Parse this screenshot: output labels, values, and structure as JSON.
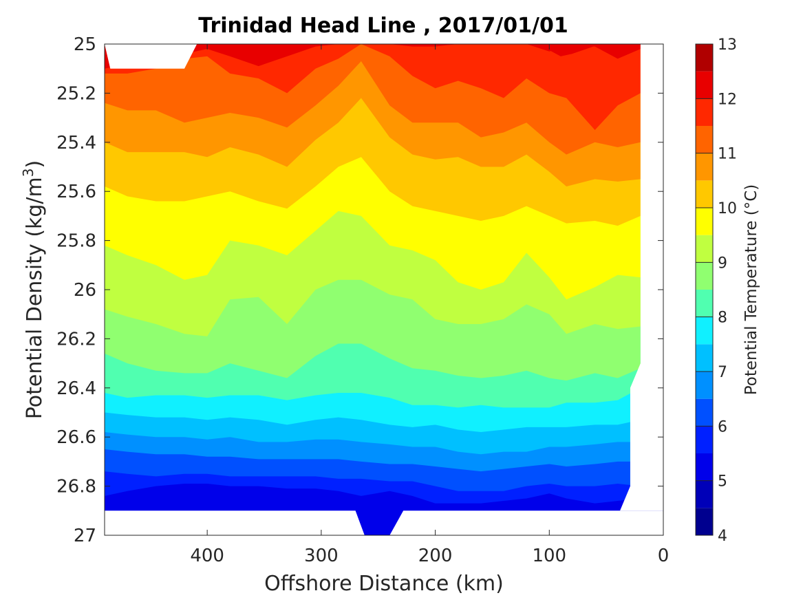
{
  "chart_data": {
    "type": "contour",
    "title": "Trinidad Head Line , 2017/01/01",
    "xlabel": "Offshore Distance (km)",
    "ylabel_main": "Potential Density (kg/m",
    "ylabel_sup": "3",
    "ylabel_end": ")",
    "xlim": [
      490,
      0
    ],
    "ylim": [
      25,
      27
    ],
    "x_ticks": [
      {
        "value": 400,
        "label": "400"
      },
      {
        "value": 300,
        "label": "300"
      },
      {
        "value": 200,
        "label": "200"
      },
      {
        "value": 100,
        "label": "100"
      },
      {
        "value": 0,
        "label": "0"
      }
    ],
    "y_ticks": [
      {
        "value": 25,
        "label": "25"
      },
      {
        "value": 25.2,
        "label": "25.2"
      },
      {
        "value": 25.4,
        "label": "25.4"
      },
      {
        "value": 25.6,
        "label": "25.6"
      },
      {
        "value": 25.8,
        "label": "25.8"
      },
      {
        "value": 26,
        "label": "26"
      },
      {
        "value": 26.2,
        "label": "26.2"
      },
      {
        "value": 26.4,
        "label": "26.4"
      },
      {
        "value": 26.6,
        "label": "26.6"
      },
      {
        "value": 26.8,
        "label": "26.8"
      },
      {
        "value": 27,
        "label": "27"
      }
    ],
    "colorbar": {
      "label": "Potential Temperature (°C)",
      "min": 4,
      "max": 13,
      "ticks": [
        {
          "value": 4,
          "label": "4"
        },
        {
          "value": 5,
          "label": "5"
        },
        {
          "value": 6,
          "label": "6"
        },
        {
          "value": 7,
          "label": "7"
        },
        {
          "value": 8,
          "label": "8"
        },
        {
          "value": 9,
          "label": "9"
        },
        {
          "value": 10,
          "label": "10"
        },
        {
          "value": 11,
          "label": "11"
        },
        {
          "value": 12,
          "label": "12"
        },
        {
          "value": 13,
          "label": "13"
        }
      ],
      "levels": [
        {
          "from": 4.0,
          "to": 4.5,
          "color": "#00008f"
        },
        {
          "from": 4.5,
          "to": 5.0,
          "color": "#0000b8"
        },
        {
          "from": 5.0,
          "to": 5.5,
          "color": "#0000ea"
        },
        {
          "from": 5.5,
          "to": 6.0,
          "color": "#0020ff"
        },
        {
          "from": 6.0,
          "to": 6.5,
          "color": "#0050ff"
        },
        {
          "from": 6.5,
          "to": 7.0,
          "color": "#0090ff"
        },
        {
          "from": 7.0,
          "to": 7.5,
          "color": "#00c0ff"
        },
        {
          "from": 7.5,
          "to": 8.0,
          "color": "#10f0ff"
        },
        {
          "from": 8.0,
          "to": 8.5,
          "color": "#50ffb0"
        },
        {
          "from": 8.5,
          "to": 9.0,
          "color": "#90ff70"
        },
        {
          "from": 9.0,
          "to": 9.5,
          "color": "#c0ff40"
        },
        {
          "from": 9.5,
          "to": 10.0,
          "color": "#ffff00"
        },
        {
          "from": 10.0,
          "to": 10.5,
          "color": "#ffc800"
        },
        {
          "from": 10.5,
          "to": 11.0,
          "color": "#ff9600"
        },
        {
          "from": 11.0,
          "to": 11.5,
          "color": "#ff6400"
        },
        {
          "from": 11.5,
          "to": 12.0,
          "color": "#ff2800"
        },
        {
          "from": 12.0,
          "to": 12.5,
          "color": "#e80000"
        },
        {
          "from": 12.5,
          "to": 13.0,
          "color": "#b00000"
        }
      ]
    },
    "contours": {
      "x_km": [
        490,
        470,
        445,
        420,
        400,
        380,
        355,
        330,
        305,
        285,
        265,
        240,
        220,
        200,
        180,
        160,
        140,
        120,
        100,
        85,
        60,
        40,
        20
      ],
      "isotherms": [
        {
          "temp": 12.0,
          "sigma": [
            25.1,
            25.08,
            25.06,
            25.04,
            25.02,
            25.05,
            25.09,
            25.05,
            25.01,
            25.0,
            25.0,
            25.0,
            25.01,
            25.01,
            25.0,
            25.0,
            25.0,
            25.0,
            25.03,
            25.01,
            25.01,
            25.06,
            25.02
          ]
        },
        {
          "temp": 11.5,
          "sigma": [
            25.12,
            25.12,
            25.1,
            25.06,
            25.05,
            25.12,
            25.14,
            25.2,
            25.1,
            25.06,
            25.0,
            25.05,
            25.13,
            25.18,
            25.15,
            25.18,
            25.22,
            25.14,
            25.2,
            25.22,
            25.35,
            25.25,
            25.2
          ]
        },
        {
          "temp": 11.0,
          "sigma": [
            25.24,
            25.27,
            25.27,
            25.32,
            25.3,
            25.28,
            25.3,
            25.34,
            25.25,
            25.17,
            25.07,
            25.25,
            25.32,
            25.32,
            25.32,
            25.38,
            25.36,
            25.32,
            25.4,
            25.45,
            25.4,
            25.42,
            25.4
          ]
        },
        {
          "temp": 10.5,
          "sigma": [
            25.4,
            25.44,
            25.44,
            25.44,
            25.46,
            25.42,
            25.45,
            25.5,
            25.39,
            25.32,
            25.22,
            25.38,
            25.45,
            25.47,
            25.46,
            25.5,
            25.5,
            25.45,
            25.52,
            25.58,
            25.55,
            25.56,
            25.55
          ]
        },
        {
          "temp": 10.0,
          "sigma": [
            25.58,
            25.62,
            25.64,
            25.64,
            25.62,
            25.6,
            25.64,
            25.67,
            25.58,
            25.5,
            25.46,
            25.6,
            25.66,
            25.68,
            25.7,
            25.72,
            25.7,
            25.66,
            25.7,
            25.73,
            25.72,
            25.74,
            25.7
          ]
        },
        {
          "temp": 9.5,
          "sigma": [
            25.82,
            25.86,
            25.9,
            25.96,
            25.94,
            25.8,
            25.82,
            25.86,
            25.76,
            25.68,
            25.7,
            25.82,
            25.84,
            25.88,
            25.97,
            26.0,
            25.97,
            25.85,
            25.95,
            26.04,
            25.99,
            25.94,
            25.95
          ]
        },
        {
          "temp": 9.0,
          "sigma": [
            26.08,
            26.11,
            26.14,
            26.18,
            26.19,
            26.04,
            26.03,
            26.14,
            26.0,
            25.96,
            25.96,
            26.02,
            26.04,
            26.12,
            26.14,
            26.14,
            26.12,
            26.06,
            26.1,
            26.18,
            26.14,
            26.16,
            26.15
          ]
        },
        {
          "temp": 8.5,
          "sigma": [
            26.26,
            26.3,
            26.33,
            26.34,
            26.34,
            26.3,
            26.33,
            26.36,
            26.27,
            26.22,
            26.22,
            26.28,
            26.32,
            26.33,
            26.35,
            26.36,
            26.35,
            26.33,
            26.36,
            26.37,
            26.34,
            26.36,
            26.32
          ]
        },
        {
          "temp": 8.0,
          "sigma": [
            26.42,
            26.44,
            26.43,
            26.43,
            26.44,
            26.43,
            26.43,
            26.45,
            26.43,
            26.42,
            26.42,
            26.44,
            26.47,
            26.47,
            26.48,
            26.47,
            26.48,
            26.48,
            26.48,
            26.46,
            26.46,
            26.45,
            26.4
          ]
        },
        {
          "temp": 7.5,
          "sigma": [
            26.5,
            26.51,
            26.52,
            26.52,
            26.53,
            26.52,
            26.53,
            26.55,
            26.53,
            26.52,
            26.53,
            26.55,
            26.56,
            26.55,
            26.57,
            26.58,
            26.57,
            26.56,
            26.56,
            26.56,
            26.55,
            26.55,
            26.53
          ]
        },
        {
          "temp": 7.0,
          "sigma": [
            26.58,
            26.59,
            26.6,
            26.6,
            26.61,
            26.6,
            26.62,
            26.62,
            26.61,
            26.61,
            26.62,
            26.63,
            26.64,
            26.64,
            26.66,
            26.67,
            26.66,
            26.66,
            26.64,
            26.64,
            26.63,
            26.62,
            26.62
          ]
        },
        {
          "temp": 6.5,
          "sigma": [
            26.65,
            26.66,
            26.67,
            26.67,
            26.68,
            26.68,
            26.69,
            26.69,
            26.69,
            26.69,
            26.7,
            26.71,
            26.71,
            26.72,
            26.73,
            26.74,
            26.73,
            26.72,
            26.71,
            26.72,
            26.71,
            26.7,
            26.7
          ]
        },
        {
          "temp": 6.0,
          "sigma": [
            26.74,
            26.75,
            26.76,
            26.75,
            26.75,
            26.76,
            26.76,
            26.76,
            26.76,
            26.77,
            26.77,
            26.78,
            26.78,
            26.8,
            26.82,
            26.82,
            26.82,
            26.8,
            26.79,
            26.8,
            26.8,
            26.79,
            26.8
          ]
        },
        {
          "temp": 5.5,
          "sigma": [
            26.84,
            26.82,
            26.8,
            26.79,
            26.79,
            26.8,
            26.8,
            26.81,
            26.81,
            26.82,
            26.84,
            26.82,
            26.84,
            26.87,
            26.87,
            26.87,
            26.86,
            26.85,
            26.83,
            26.85,
            26.87,
            26.86,
            26.85
          ]
        }
      ],
      "mask_top": {
        "x_km": [
          490,
          485,
          420,
          409
        ],
        "sigma": [
          25.0,
          25.1,
          25.1,
          25.0
        ]
      },
      "mask_bottom_sigma": 26.9,
      "trough": {
        "x_km": [
          270,
          262,
          240,
          228
        ],
        "sigma": [
          26.9,
          27.0,
          27.0,
          26.9
        ]
      },
      "mask_right": {
        "x_km": [
          20,
          20,
          29,
          29,
          38
        ],
        "sigma": [
          25.0,
          26.3,
          26.4,
          26.8,
          26.9
        ]
      }
    }
  }
}
